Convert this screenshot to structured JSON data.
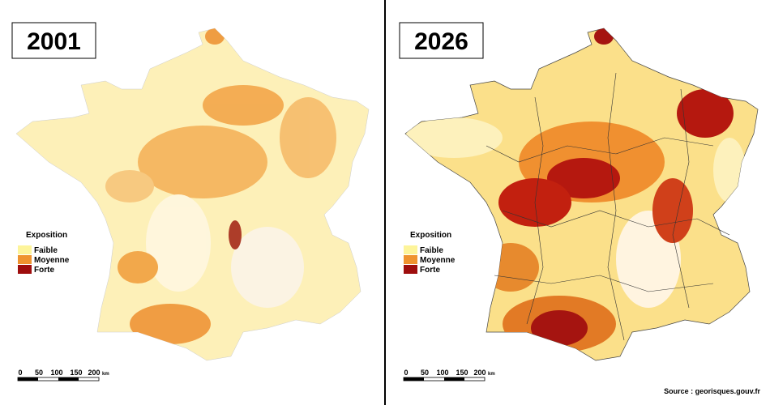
{
  "panels": [
    {
      "year": "2001",
      "legend": {
        "title": "Exposition",
        "items": [
          "Faible",
          "Moyenne",
          "Forte"
        ]
      },
      "scale": {
        "labels": [
          "0",
          "50",
          "100",
          "150",
          "200"
        ],
        "unit": "km"
      }
    },
    {
      "year": "2026",
      "legend": {
        "title": "Exposition",
        "items": [
          "Faible",
          "Moyenne",
          "Forte"
        ]
      },
      "scale": {
        "labels": [
          "0",
          "50",
          "100",
          "150",
          "200"
        ],
        "unit": "km"
      }
    }
  ],
  "source": "Source : georisques.gouv.fr"
}
